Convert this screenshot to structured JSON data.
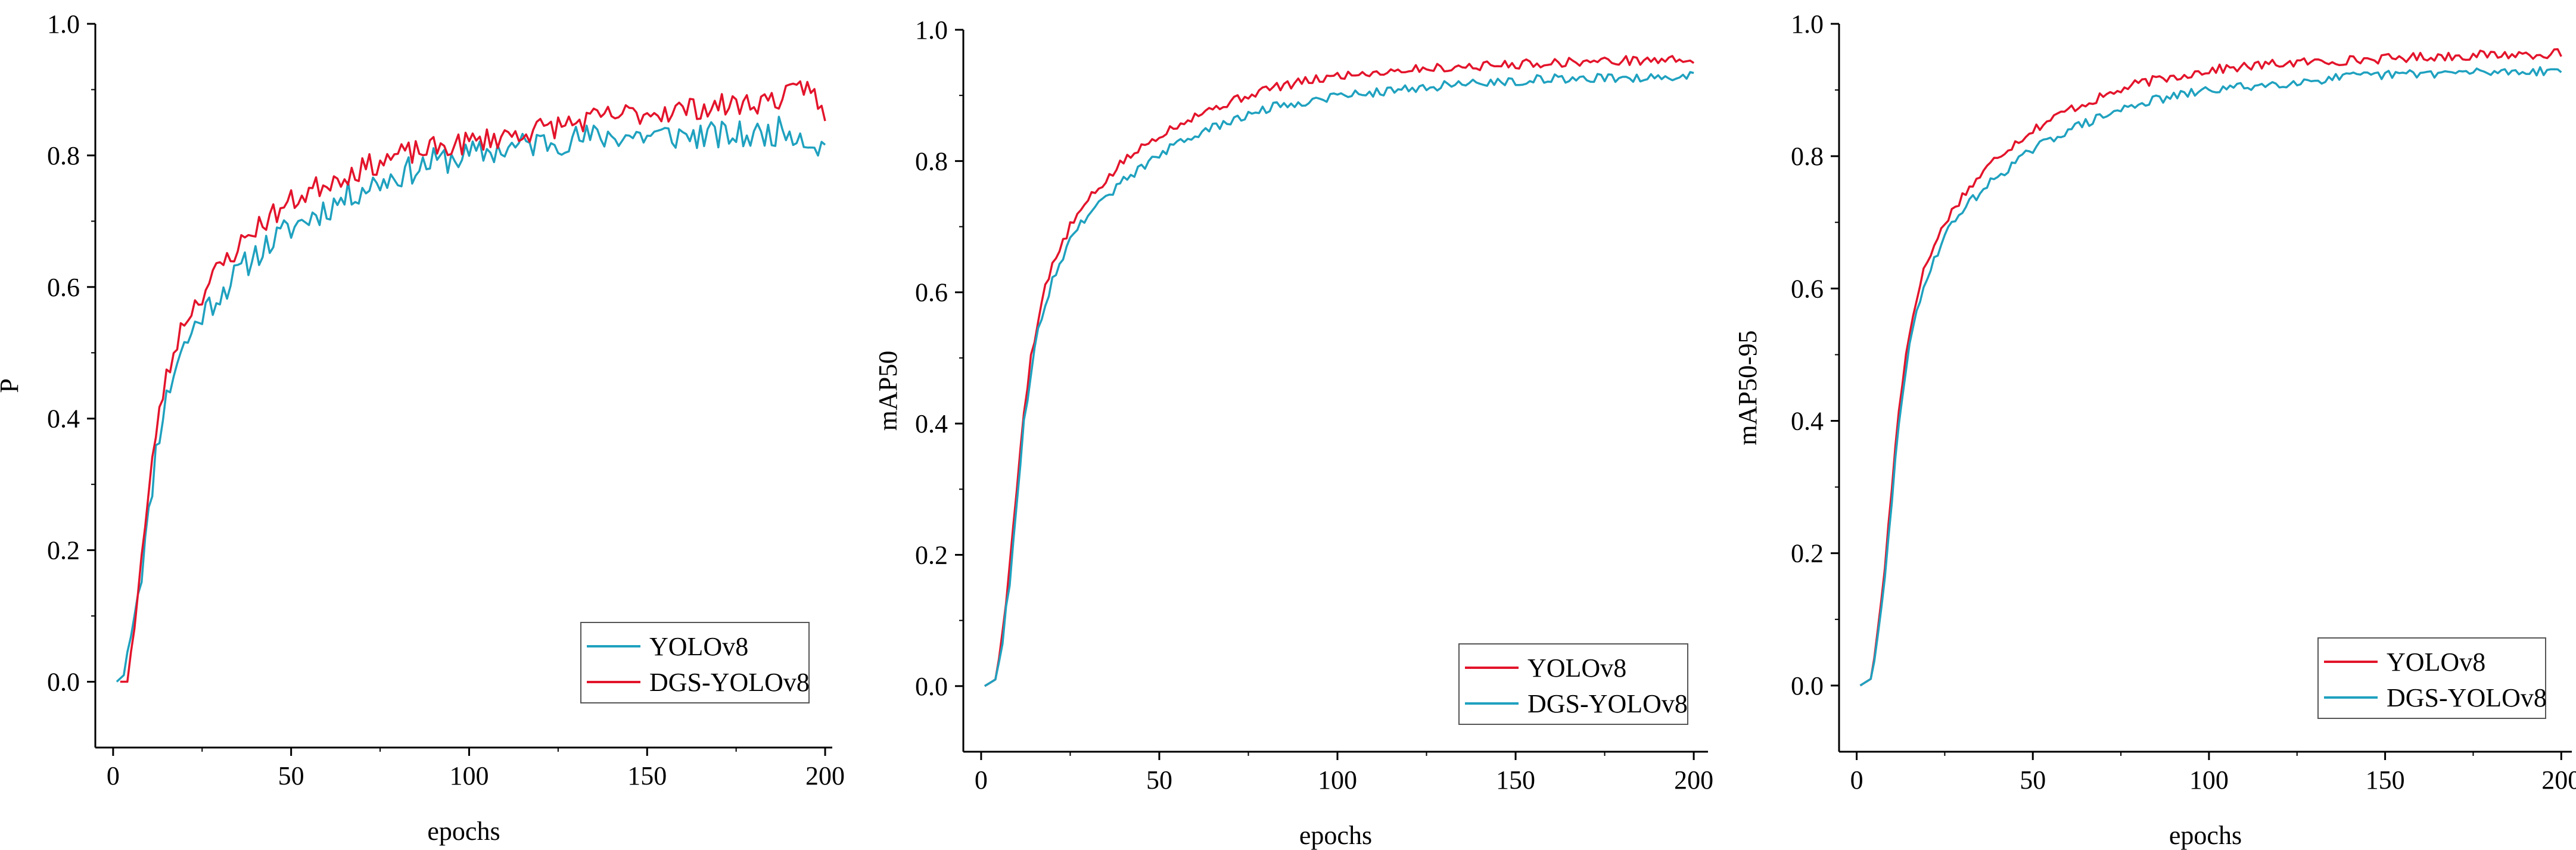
{
  "colors": {
    "red": "#e3142b",
    "cyan": "#1fa1bf",
    "axis": "#000000"
  },
  "chart_data": [
    {
      "type": "line",
      "xlabel": "epochs",
      "ylabel": "P",
      "xlim": [
        -5,
        202
      ],
      "ylim": [
        -0.1,
        1.0
      ],
      "xticks": [
        0,
        50,
        100,
        150,
        200
      ],
      "yticks": [
        0.0,
        0.2,
        0.4,
        0.6,
        0.8,
        1.0
      ],
      "xtick_labels": [
        "0",
        "50",
        "100",
        "150",
        "200"
      ],
      "ytick_labels": [
        "0.0",
        "0.2",
        "0.4",
        "0.6",
        "0.8",
        "1.0"
      ],
      "legend_position": "bottom-right",
      "series": [
        {
          "name": "YOLOv8",
          "color": "#1fa1bf",
          "noise": 0.022,
          "seed": 11,
          "anchors": [
            [
              1,
              0.0
            ],
            [
              3,
              0.01
            ],
            [
              5,
              0.08
            ],
            [
              8,
              0.17
            ],
            [
              10,
              0.25
            ],
            [
              12,
              0.35
            ],
            [
              14,
              0.41
            ],
            [
              16,
              0.45
            ],
            [
              18,
              0.49
            ],
            [
              20,
              0.51
            ],
            [
              25,
              0.56
            ],
            [
              30,
              0.59
            ],
            [
              35,
              0.62
            ],
            [
              40,
              0.65
            ],
            [
              50,
              0.69
            ],
            [
              60,
              0.72
            ],
            [
              70,
              0.75
            ],
            [
              80,
              0.77
            ],
            [
              90,
              0.79
            ],
            [
              100,
              0.8
            ],
            [
              120,
              0.82
            ],
            [
              140,
              0.83
            ],
            [
              160,
              0.83
            ],
            [
              180,
              0.83
            ],
            [
              190,
              0.84
            ],
            [
              200,
              0.81
            ]
          ]
        },
        {
          "name": "DGS-YOLOv8",
          "color": "#e3142b",
          "noise": 0.018,
          "seed": 23,
          "anchors": [
            [
              2,
              0.0
            ],
            [
              4,
              0.0
            ],
            [
              6,
              0.09
            ],
            [
              8,
              0.19
            ],
            [
              10,
              0.28
            ],
            [
              12,
              0.38
            ],
            [
              14,
              0.44
            ],
            [
              16,
              0.48
            ],
            [
              18,
              0.52
            ],
            [
              20,
              0.55
            ],
            [
              25,
              0.59
            ],
            [
              30,
              0.63
            ],
            [
              35,
              0.66
            ],
            [
              40,
              0.69
            ],
            [
              50,
              0.73
            ],
            [
              60,
              0.76
            ],
            [
              70,
              0.78
            ],
            [
              80,
              0.8
            ],
            [
              90,
              0.81
            ],
            [
              100,
              0.82
            ],
            [
              120,
              0.84
            ],
            [
              140,
              0.86
            ],
            [
              160,
              0.87
            ],
            [
              180,
              0.88
            ],
            [
              190,
              0.89
            ],
            [
              196,
              0.91
            ],
            [
              198,
              0.87
            ],
            [
              200,
              0.86
            ]
          ]
        }
      ],
      "legend": [
        {
          "label": "YOLOv8",
          "color": "#1fa1bf"
        },
        {
          "label": "DGS-YOLOv8",
          "color": "#e3142b"
        }
      ]
    },
    {
      "type": "line",
      "xlabel": "epochs",
      "ylabel": "mAP50",
      "xlim": [
        -5,
        204
      ],
      "ylim": [
        -0.1,
        1.0
      ],
      "xticks": [
        0,
        50,
        100,
        150,
        200
      ],
      "yticks": [
        0.0,
        0.2,
        0.4,
        0.6,
        0.8,
        1.0
      ],
      "xtick_labels": [
        "0",
        "50",
        "100",
        "150",
        "200"
      ],
      "ytick_labels": [
        "0.0",
        "0.2",
        "0.4",
        "0.6",
        "0.8",
        "1.0"
      ],
      "legend_position": "bottom-right",
      "series": [
        {
          "name": "YOLOv8",
          "color": "#e3142b",
          "noise": 0.007,
          "seed": 5,
          "anchors": [
            [
              1,
              0.0
            ],
            [
              4,
              0.01
            ],
            [
              6,
              0.08
            ],
            [
              8,
              0.18
            ],
            [
              10,
              0.3
            ],
            [
              12,
              0.42
            ],
            [
              14,
              0.5
            ],
            [
              16,
              0.56
            ],
            [
              18,
              0.61
            ],
            [
              20,
              0.64
            ],
            [
              25,
              0.7
            ],
            [
              30,
              0.74
            ],
            [
              40,
              0.8
            ],
            [
              50,
              0.84
            ],
            [
              60,
              0.87
            ],
            [
              70,
              0.89
            ],
            [
              80,
              0.91
            ],
            [
              90,
              0.92
            ],
            [
              100,
              0.93
            ],
            [
              120,
              0.94
            ],
            [
              140,
              0.945
            ],
            [
              160,
              0.95
            ],
            [
              180,
              0.953
            ],
            [
              200,
              0.955
            ]
          ]
        },
        {
          "name": "DGS-YOLOv8",
          "color": "#1fa1bf",
          "noise": 0.007,
          "seed": 9,
          "anchors": [
            [
              1,
              0.0
            ],
            [
              4,
              0.01
            ],
            [
              6,
              0.07
            ],
            [
              8,
              0.16
            ],
            [
              10,
              0.28
            ],
            [
              12,
              0.4
            ],
            [
              14,
              0.48
            ],
            [
              16,
              0.54
            ],
            [
              18,
              0.58
            ],
            [
              20,
              0.62
            ],
            [
              25,
              0.68
            ],
            [
              30,
              0.72
            ],
            [
              40,
              0.77
            ],
            [
              50,
              0.81
            ],
            [
              60,
              0.84
            ],
            [
              70,
              0.86
            ],
            [
              80,
              0.88
            ],
            [
              90,
              0.89
            ],
            [
              100,
              0.9
            ],
            [
              120,
              0.91
            ],
            [
              140,
              0.92
            ],
            [
              160,
              0.925
            ],
            [
              180,
              0.927
            ],
            [
              200,
              0.93
            ]
          ]
        }
      ],
      "legend": [
        {
          "label": "YOLOv8",
          "color": "#e3142b"
        },
        {
          "label": "DGS-YOLOv8",
          "color": "#1fa1bf"
        }
      ]
    },
    {
      "type": "line",
      "xlabel": "epochs",
      "ylabel": "mAP50-95",
      "xlim": [
        -5,
        203
      ],
      "ylim": [
        -0.1,
        1.0
      ],
      "xticks": [
        0,
        50,
        100,
        150,
        200
      ],
      "yticks": [
        0.0,
        0.2,
        0.4,
        0.6,
        0.8,
        1.0
      ],
      "xtick_labels": [
        "0",
        "50",
        "100",
        "150",
        "200"
      ],
      "ytick_labels": [
        "0.0",
        "0.2",
        "0.4",
        "0.6",
        "0.8",
        "1.0"
      ],
      "legend_position": "bottom-right",
      "series": [
        {
          "name": "YOLOv8",
          "color": "#e3142b",
          "noise": 0.007,
          "seed": 17,
          "anchors": [
            [
              1,
              0.0
            ],
            [
              4,
              0.01
            ],
            [
              6,
              0.08
            ],
            [
              8,
              0.18
            ],
            [
              10,
              0.3
            ],
            [
              12,
              0.42
            ],
            [
              14,
              0.5
            ],
            [
              16,
              0.56
            ],
            [
              18,
              0.61
            ],
            [
              20,
              0.64
            ],
            [
              25,
              0.7
            ],
            [
              30,
              0.74
            ],
            [
              40,
              0.8
            ],
            [
              50,
              0.84
            ],
            [
              60,
              0.87
            ],
            [
              70,
              0.89
            ],
            [
              80,
              0.91
            ],
            [
              90,
              0.92
            ],
            [
              100,
              0.93
            ],
            [
              120,
              0.94
            ],
            [
              140,
              0.945
            ],
            [
              160,
              0.95
            ],
            [
              180,
              0.953
            ],
            [
              200,
              0.955
            ]
          ]
        },
        {
          "name": "DGS-YOLOv8",
          "color": "#1fa1bf",
          "noise": 0.007,
          "seed": 29,
          "anchors": [
            [
              1,
              0.0
            ],
            [
              4,
              0.01
            ],
            [
              6,
              0.07
            ],
            [
              8,
              0.16
            ],
            [
              10,
              0.28
            ],
            [
              12,
              0.4
            ],
            [
              14,
              0.48
            ],
            [
              16,
              0.54
            ],
            [
              18,
              0.58
            ],
            [
              20,
              0.62
            ],
            [
              25,
              0.68
            ],
            [
              30,
              0.72
            ],
            [
              40,
              0.77
            ],
            [
              50,
              0.81
            ],
            [
              60,
              0.84
            ],
            [
              70,
              0.86
            ],
            [
              80,
              0.88
            ],
            [
              90,
              0.89
            ],
            [
              100,
              0.9
            ],
            [
              120,
              0.91
            ],
            [
              140,
              0.92
            ],
            [
              160,
              0.925
            ],
            [
              180,
              0.927
            ],
            [
              200,
              0.93
            ]
          ]
        }
      ],
      "legend": [
        {
          "label": "YOLOv8",
          "color": "#e3142b"
        },
        {
          "label": "DGS-YOLOv8",
          "color": "#1fa1bf"
        }
      ]
    }
  ]
}
